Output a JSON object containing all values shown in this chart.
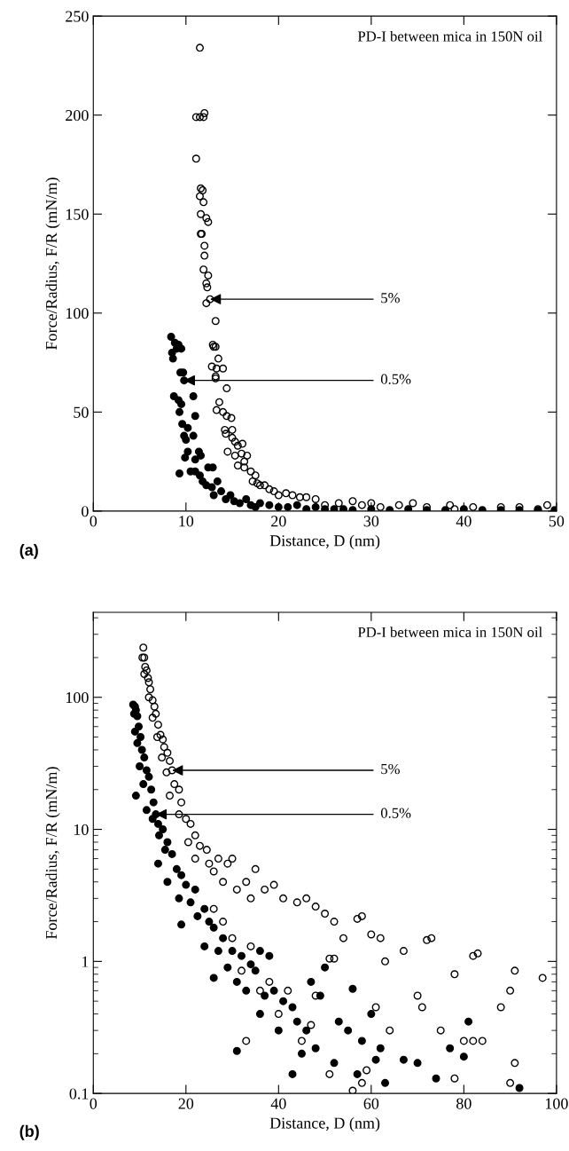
{
  "chart_data": [
    {
      "type": "scatter",
      "title": "PD-I between mica in 150N oil",
      "xlabel": "Distance, D (nm)",
      "ylabel": "Force/Radius, F/R (mN/m)",
      "xlim": [
        0,
        50
      ],
      "xticks": [
        0,
        10,
        20,
        30,
        40,
        50
      ],
      "ylim": [
        0,
        250
      ],
      "yticks": [
        0,
        50,
        100,
        150,
        200,
        250
      ],
      "grid": false,
      "legend": false,
      "series": [
        {
          "marker": "circle-open",
          "color": "#000000",
          "x": [
            11.5,
            11.1,
            11.5,
            11.9,
            12.0,
            11.1,
            11.6,
            11.8,
            11.5,
            11.9,
            11.6,
            12.2,
            12.4,
            11.6,
            11.7,
            12.0,
            12.0,
            11.9,
            12.4,
            12.2,
            12.3,
            12.2,
            12.6,
            13.2,
            13.0,
            12.9,
            13.2,
            13.5,
            12.8,
            13.3,
            14.0,
            13.2,
            13.2,
            14.4,
            13.6,
            13.3,
            14.0,
            14.4,
            14.9,
            14.2,
            14.3,
            15.0,
            15.0,
            15.3,
            15.6,
            16.1,
            14.5,
            15.3,
            16.0,
            15.6,
            16.3,
            16.3,
            16.6,
            17,
            17.5,
            17.2,
            17.7,
            18,
            18.5,
            19,
            19.5,
            20,
            20.8,
            21.5,
            22.3,
            23,
            24,
            25,
            26.5,
            28,
            29,
            30,
            31,
            33,
            34.5,
            36,
            38.5,
            39,
            41,
            44,
            46,
            48,
            49
          ],
          "values": [
            234,
            199,
            199,
            199,
            201,
            178,
            163,
            162,
            159,
            156,
            150,
            148,
            146,
            140,
            140,
            134,
            129,
            122,
            119,
            115,
            113,
            105,
            107,
            96,
            83,
            84,
            83,
            77,
            73,
            72,
            72,
            68,
            67,
            62,
            55,
            51,
            50,
            48,
            47,
            41,
            39,
            41,
            37,
            35,
            33,
            34,
            30,
            28,
            29,
            23,
            22,
            25,
            28,
            20,
            18,
            15,
            14,
            13,
            13,
            11,
            10,
            8,
            9,
            8,
            7,
            7,
            6,
            3,
            4,
            5,
            3,
            4,
            2,
            3,
            4,
            2,
            3,
            1,
            2,
            2,
            2,
            1,
            3
          ]
        },
        {
          "marker": "circle",
          "color": "#000000",
          "x": [
            8.4,
            8.8,
            9.2,
            8.5,
            9.0,
            9.5,
            8.6,
            9.4,
            9.7,
            9.8,
            8.7,
            9.2,
            9.5,
            10.8,
            9.3,
            11.0,
            9.6,
            10.2,
            9.8,
            10.0,
            10.8,
            10.2,
            11.4,
            9.9,
            11.0,
            11.6,
            9.3,
            10.5,
            11.0,
            11.5,
            12.4,
            12.9,
            11.8,
            12.2,
            12.8,
            13.4,
            13.0,
            13.8,
            14.3,
            14.8,
            15.2,
            15.8,
            16.5,
            17,
            17.5,
            18.0,
            19,
            20,
            21,
            22,
            23,
            24,
            25,
            26,
            27,
            28,
            30,
            32,
            34,
            36,
            38,
            40,
            42,
            44,
            46,
            48,
            49.8
          ],
          "values": [
            88,
            85,
            84,
            80,
            82,
            82,
            77,
            70,
            70,
            66,
            58,
            56,
            54,
            58,
            50,
            48,
            44,
            42,
            38,
            36,
            38,
            30,
            30,
            27,
            26,
            28,
            19,
            20,
            20,
            18,
            22,
            22,
            15,
            13,
            12,
            15,
            8,
            10,
            6,
            8,
            5,
            4,
            6,
            3,
            2,
            4,
            3,
            2,
            2,
            3,
            1,
            2,
            1,
            1,
            1,
            0.5,
            1,
            0.5,
            1,
            0.5,
            0.5,
            1,
            0.5,
            0.5,
            0.5,
            0.5,
            0.5
          ]
        }
      ],
      "annotations": [
        {
          "text": "5%",
          "x": 12.6,
          "y": 107
        },
        {
          "text": "0.5%",
          "x": 9.8,
          "y": 66
        },
        "(a)"
      ]
    },
    {
      "type": "scatter",
      "title": "PD-I between mica in 150N oil",
      "xlabel": "Distance, D (nm)",
      "ylabel": "Force/Radius, F/R (mN/m)",
      "log": "y",
      "xlim": [
        0,
        100
      ],
      "xticks": [
        0,
        20,
        40,
        60,
        80,
        100
      ],
      "ylim": [
        0.1,
        440
      ],
      "yticks": [
        0.1,
        1,
        10,
        100
      ],
      "grid": false,
      "legend": false,
      "series": [
        {
          "marker": "circle-open",
          "color": "#000000",
          "x": [
            10.8,
            10.6,
            11.0,
            11.2,
            11.5,
            11.0,
            11.8,
            12.0,
            12.3,
            12.0,
            12.8,
            13.2,
            13.5,
            12.8,
            14.0,
            14.5,
            13.8,
            15,
            15.3,
            16,
            14.8,
            16.5,
            17,
            15.8,
            17.5,
            18.5,
            16.5,
            19,
            18.5,
            20,
            21,
            22,
            20.5,
            23,
            24.5,
            22,
            25,
            27,
            26,
            29,
            30,
            28,
            31,
            33,
            35,
            34,
            37,
            39,
            41,
            44,
            46,
            48,
            50,
            52,
            57,
            58,
            54,
            51,
            52,
            60,
            62,
            63,
            67,
            72,
            73,
            78,
            82,
            83,
            88,
            90,
            91,
            97,
            70,
            71,
            75,
            80,
            82,
            84,
            78,
            90,
            91,
            59,
            58,
            56,
            51,
            42,
            40,
            45,
            48,
            36,
            38,
            32,
            34,
            30,
            28,
            26,
            33,
            47,
            61,
            64
          ],
          "values": [
            238,
            200,
            200,
            170,
            160,
            150,
            140,
            130,
            115,
            100,
            95,
            85,
            75,
            70,
            62,
            52,
            50,
            48,
            42,
            38,
            35,
            33,
            28,
            27,
            22,
            20,
            18,
            16,
            13,
            12,
            11,
            9,
            8,
            7.5,
            7,
            6,
            5.5,
            6,
            4.8,
            5.5,
            6,
            4,
            3.5,
            4,
            5,
            3,
            3.5,
            3.8,
            3,
            2.8,
            3,
            2.6,
            2.3,
            2,
            2.1,
            2.2,
            1.5,
            1.05,
            1.05,
            1.6,
            1.5,
            1.0,
            1.2,
            1.45,
            1.5,
            0.8,
            1.1,
            1.15,
            0.45,
            0.6,
            0.85,
            0.75,
            0.55,
            0.45,
            0.3,
            0.25,
            0.25,
            0.25,
            0.13,
            0.12,
            0.17,
            0.15,
            0.12,
            0.105,
            0.14,
            0.6,
            0.4,
            0.25,
            0.55,
            0.6,
            0.7,
            0.85,
            1.3,
            1.5,
            2.0,
            2.5,
            0.25,
            0.33,
            0.45,
            0.3
          ]
        },
        {
          "marker": "circle",
          "color": "#000000",
          "x": [
            8.6,
            9,
            9.2,
            8.8,
            9.5,
            9.8,
            9,
            10.2,
            9.5,
            10.5,
            11,
            10,
            11.5,
            12,
            10.8,
            9.2,
            12.5,
            13,
            11.5,
            13.5,
            12.8,
            14,
            15,
            14.2,
            16,
            15.5,
            17,
            14,
            18,
            19,
            16,
            20,
            22,
            18.5,
            21,
            24,
            22.5,
            19,
            25,
            26,
            28,
            24,
            27,
            30,
            29,
            32,
            26,
            31,
            35,
            33,
            37,
            36,
            39,
            41,
            43,
            40,
            44,
            46,
            47,
            49,
            45,
            48,
            50,
            53,
            55,
            56,
            58,
            60,
            62,
            63,
            61,
            67,
            70,
            74,
            77,
            80,
            81,
            92,
            31,
            43,
            52,
            57,
            34,
            38,
            36
          ],
          "values": [
            88,
            85,
            80,
            75,
            72,
            60,
            55,
            50,
            45,
            40,
            35,
            30,
            28,
            25,
            22,
            18,
            20,
            16,
            14,
            13,
            12,
            11,
            10,
            9,
            8,
            7,
            6.5,
            5.5,
            5,
            4.5,
            4,
            3.8,
            3.5,
            3,
            2.8,
            2.5,
            2.2,
            1.9,
            2,
            1.8,
            1.5,
            1.3,
            1.2,
            1.2,
            0.9,
            1.1,
            0.75,
            0.7,
            0.85,
            0.6,
            0.55,
            0.4,
            0.6,
            0.5,
            0.45,
            0.3,
            0.35,
            0.3,
            0.7,
            0.55,
            0.2,
            0.22,
            0.9,
            0.35,
            0.3,
            0.62,
            0.25,
            0.4,
            0.22,
            0.12,
            0.18,
            0.18,
            0.17,
            0.13,
            0.22,
            0.19,
            0.35,
            0.11,
            0.21,
            0.14,
            0.17,
            0.14,
            0.95,
            1.1,
            1.2
          ]
        }
      ],
      "annotations": [
        {
          "text": "5%",
          "x": 17,
          "y": 28
        },
        {
          "text": "0.5%",
          "x": 13.5,
          "y": 13
        },
        "(b)"
      ]
    }
  ]
}
